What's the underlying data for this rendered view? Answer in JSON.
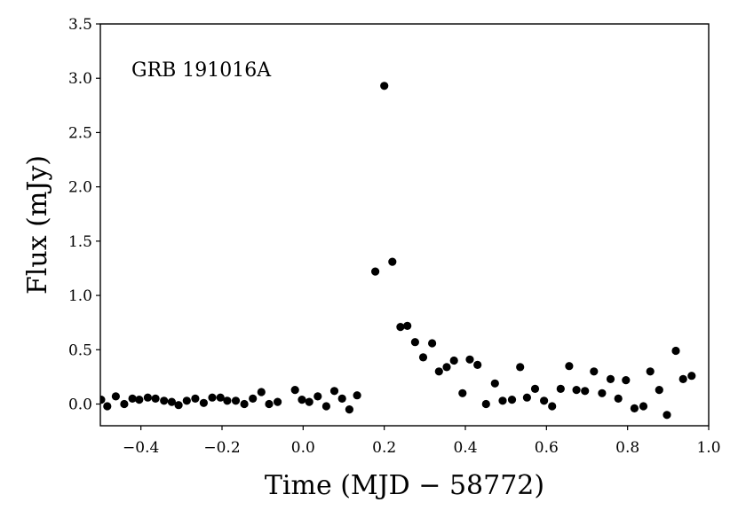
{
  "chart_data": {
    "type": "scatter",
    "title": "",
    "annotation": "GRB 191016A",
    "xlabel": "Time (MJD − 58772)",
    "ylabel": "Flux (mJy)",
    "xlim": [
      -0.5,
      1.0
    ],
    "ylim": [
      -0.2,
      3.5
    ],
    "xticks": [
      -0.4,
      -0.2,
      0.0,
      0.2,
      0.4,
      0.6,
      0.8,
      1.0
    ],
    "xtick_labels": [
      "−0.4",
      "−0.2",
      "0.0",
      "0.2",
      "0.4",
      "0.6",
      "0.8",
      "1.0"
    ],
    "yticks": [
      0.0,
      0.5,
      1.0,
      1.5,
      2.0,
      2.5,
      3.0,
      3.5
    ],
    "ytick_labels": [
      "0.0",
      "0.5",
      "1.0",
      "1.5",
      "2.0",
      "2.5",
      "3.0",
      "3.5"
    ],
    "grid": false,
    "marker_color": "#000000",
    "points": [
      [
        -0.498,
        0.04
      ],
      [
        -0.483,
        -0.02
      ],
      [
        -0.462,
        0.07
      ],
      [
        -0.441,
        0.0
      ],
      [
        -0.421,
        0.05
      ],
      [
        -0.404,
        0.04
      ],
      [
        -0.383,
        0.06
      ],
      [
        -0.364,
        0.05
      ],
      [
        -0.343,
        0.03
      ],
      [
        -0.324,
        0.02
      ],
      [
        -0.307,
        -0.01
      ],
      [
        -0.287,
        0.03
      ],
      [
        -0.266,
        0.05
      ],
      [
        -0.245,
        0.01
      ],
      [
        -0.224,
        0.06
      ],
      [
        -0.204,
        0.06
      ],
      [
        -0.187,
        0.03
      ],
      [
        -0.166,
        0.03
      ],
      [
        -0.145,
        0.0
      ],
      [
        -0.124,
        0.05
      ],
      [
        -0.103,
        0.11
      ],
      [
        -0.084,
        0.0
      ],
      [
        -0.063,
        0.02
      ],
      [
        -0.02,
        0.13
      ],
      [
        -0.003,
        0.04
      ],
      [
        0.015,
        0.02
      ],
      [
        0.036,
        0.07
      ],
      [
        0.057,
        -0.02
      ],
      [
        0.077,
        0.12
      ],
      [
        0.096,
        0.05
      ],
      [
        0.114,
        -0.05
      ],
      [
        0.133,
        0.08
      ],
      [
        0.178,
        1.22
      ],
      [
        0.2,
        2.93
      ],
      [
        0.22,
        1.31
      ],
      [
        0.24,
        0.71
      ],
      [
        0.257,
        0.72
      ],
      [
        0.276,
        0.57
      ],
      [
        0.296,
        0.43
      ],
      [
        0.318,
        0.56
      ],
      [
        0.335,
        0.3
      ],
      [
        0.354,
        0.34
      ],
      [
        0.372,
        0.4
      ],
      [
        0.393,
        0.1
      ],
      [
        0.411,
        0.41
      ],
      [
        0.43,
        0.36
      ],
      [
        0.451,
        0.0
      ],
      [
        0.473,
        0.19
      ],
      [
        0.492,
        0.03
      ],
      [
        0.515,
        0.04
      ],
      [
        0.535,
        0.34
      ],
      [
        0.552,
        0.06
      ],
      [
        0.572,
        0.14
      ],
      [
        0.594,
        0.03
      ],
      [
        0.614,
        -0.02
      ],
      [
        0.635,
        0.14
      ],
      [
        0.656,
        0.35
      ],
      [
        0.674,
        0.13
      ],
      [
        0.695,
        0.12
      ],
      [
        0.717,
        0.3
      ],
      [
        0.737,
        0.1
      ],
      [
        0.758,
        0.23
      ],
      [
        0.777,
        0.05
      ],
      [
        0.796,
        0.22
      ],
      [
        0.817,
        -0.04
      ],
      [
        0.839,
        -0.02
      ],
      [
        0.856,
        0.3
      ],
      [
        0.878,
        0.13
      ],
      [
        0.897,
        -0.1
      ],
      [
        0.919,
        0.49
      ],
      [
        0.937,
        0.23
      ],
      [
        0.958,
        0.26
      ]
    ]
  }
}
